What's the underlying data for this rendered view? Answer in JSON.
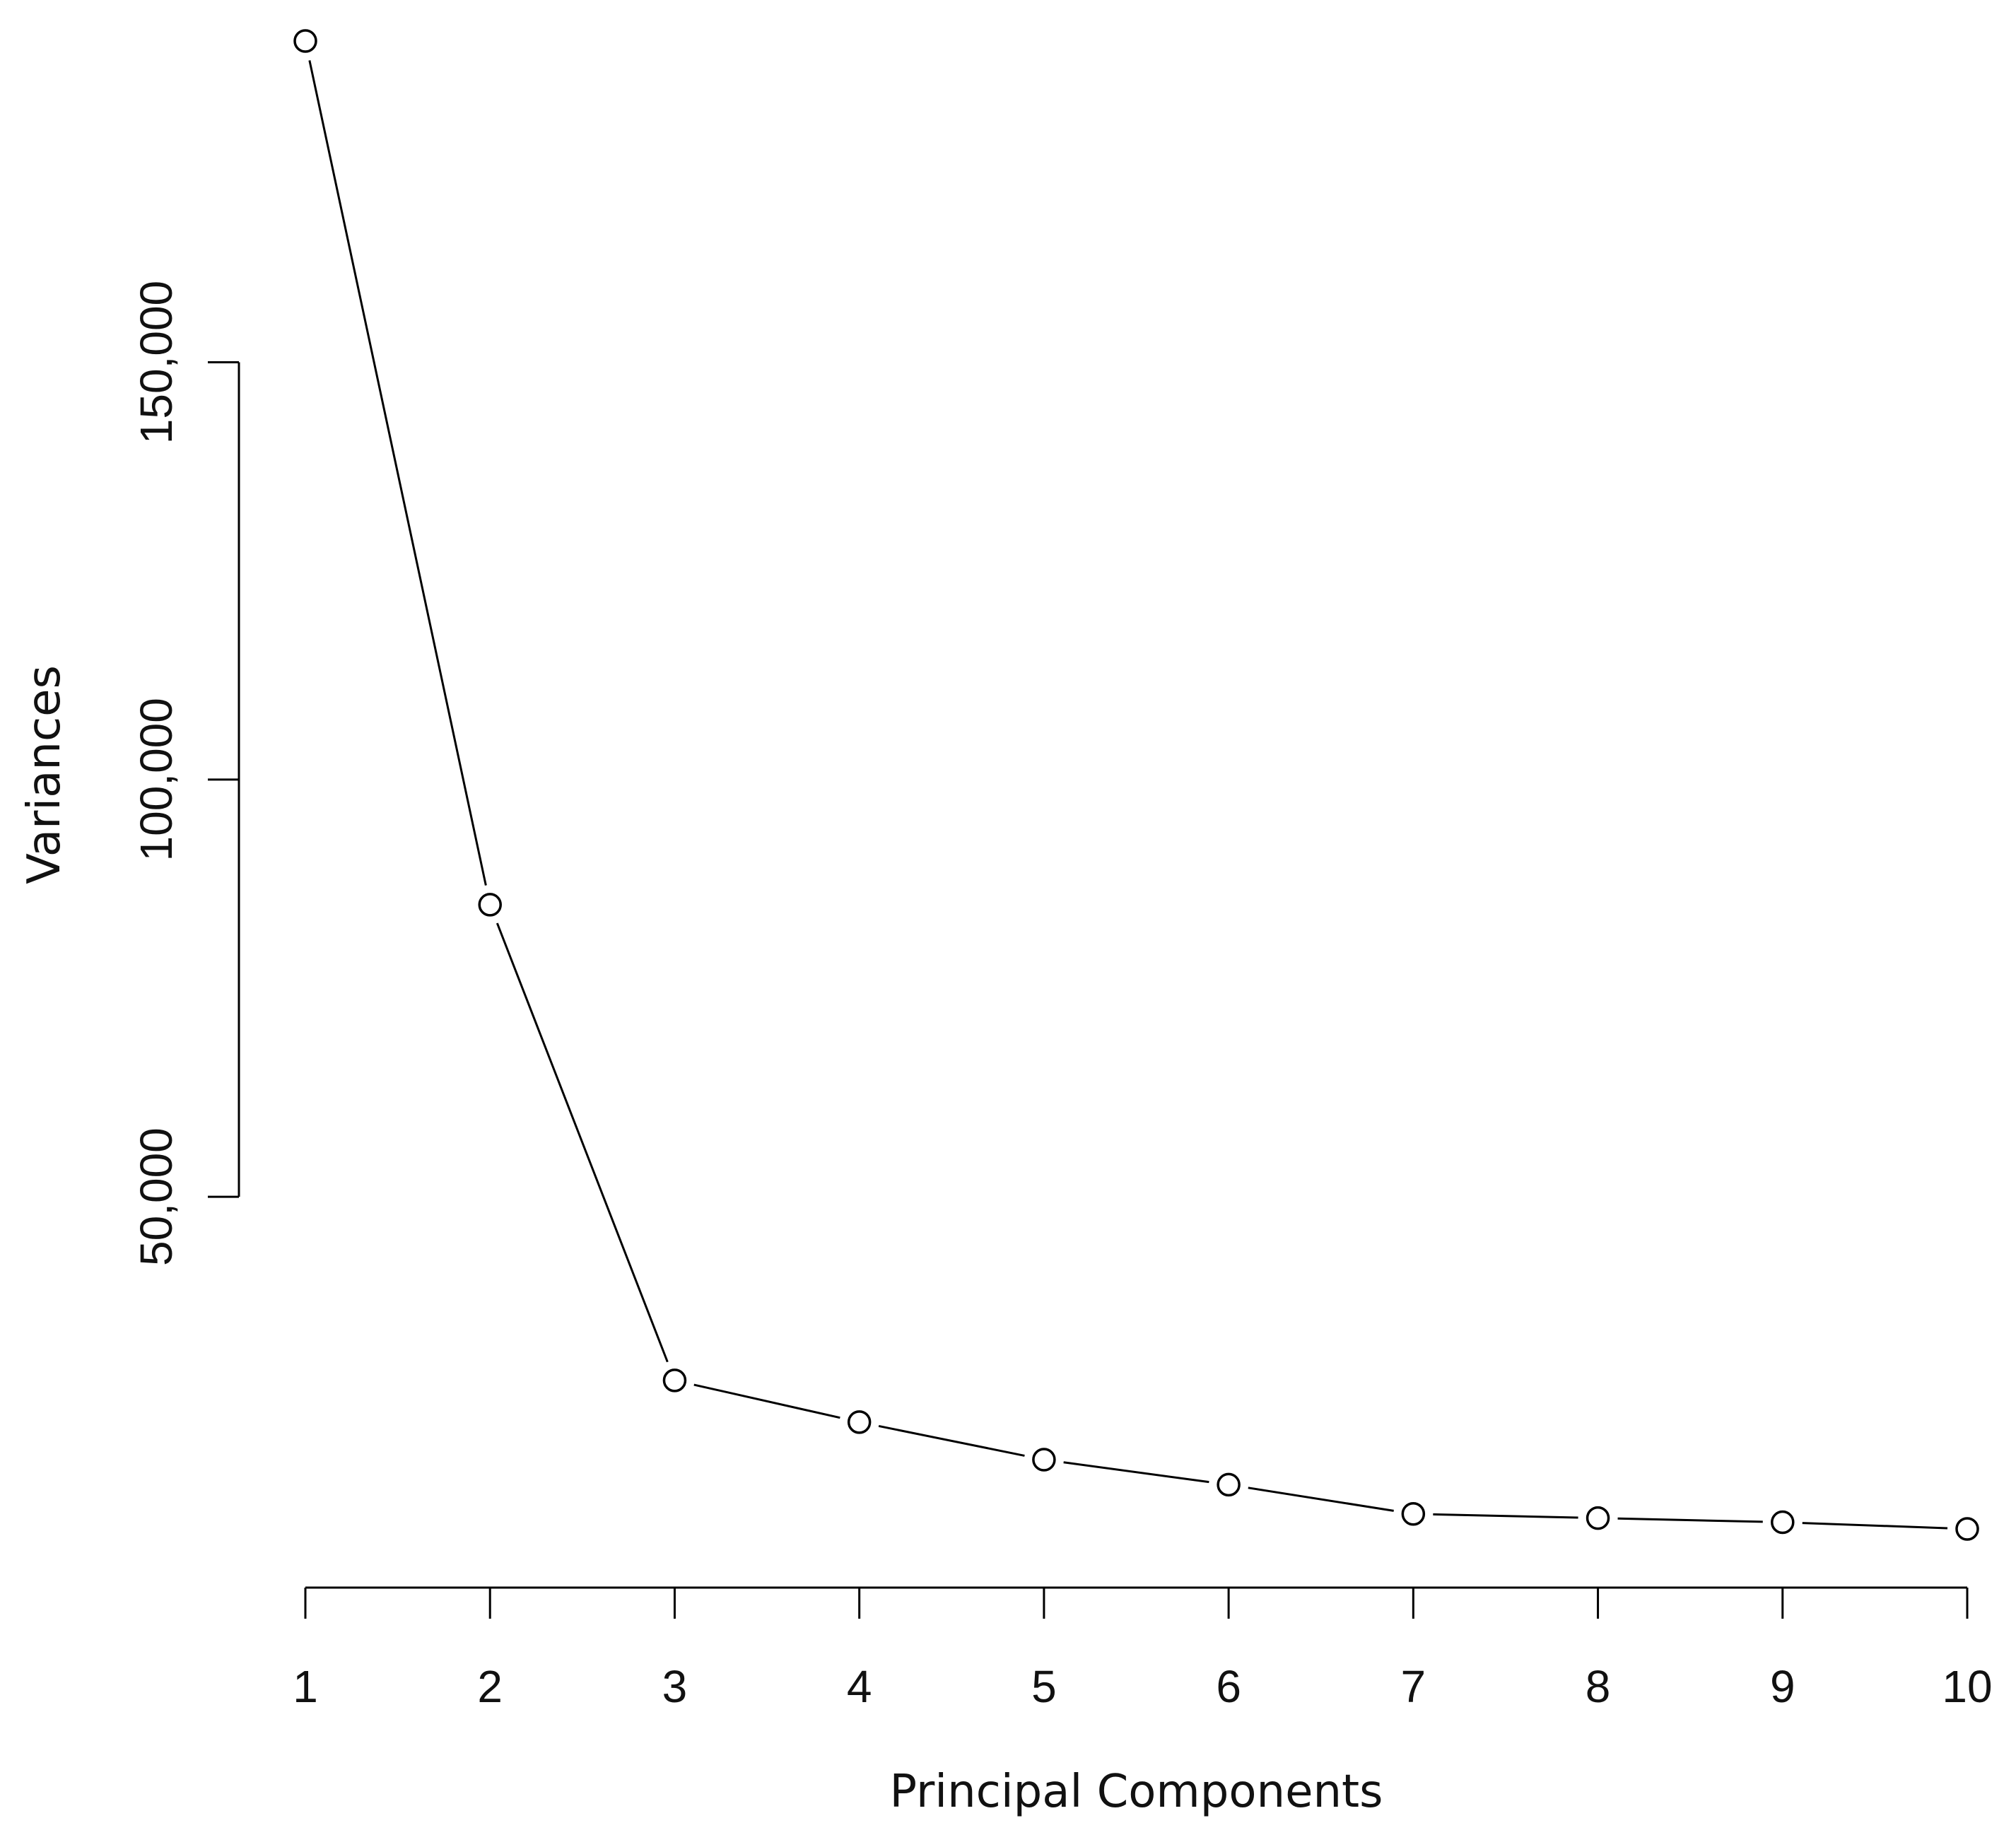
{
  "chart_data": {
    "type": "line",
    "title": "",
    "xlabel": "Principal Components",
    "ylabel": "Variances",
    "x": [
      1,
      2,
      3,
      4,
      5,
      6,
      7,
      8,
      9,
      10
    ],
    "x_tick_labels": [
      "1",
      "2",
      "3",
      "4",
      "5",
      "6",
      "7",
      "8",
      "9",
      "10"
    ],
    "y_ticks": [
      50000,
      100000,
      150000
    ],
    "y_tick_labels": [
      "50,000",
      "100,000",
      "150,000"
    ],
    "series": [
      {
        "values": [
          188500,
          85000,
          28000,
          23000,
          18500,
          15500,
          12000,
          11500,
          11000,
          10200
        ],
        "marker": "open-circle",
        "color": "#000000"
      }
    ],
    "xlim": [
      1,
      10
    ],
    "ylim": [
      10200,
      188500
    ],
    "grid": false,
    "legend": "none"
  }
}
